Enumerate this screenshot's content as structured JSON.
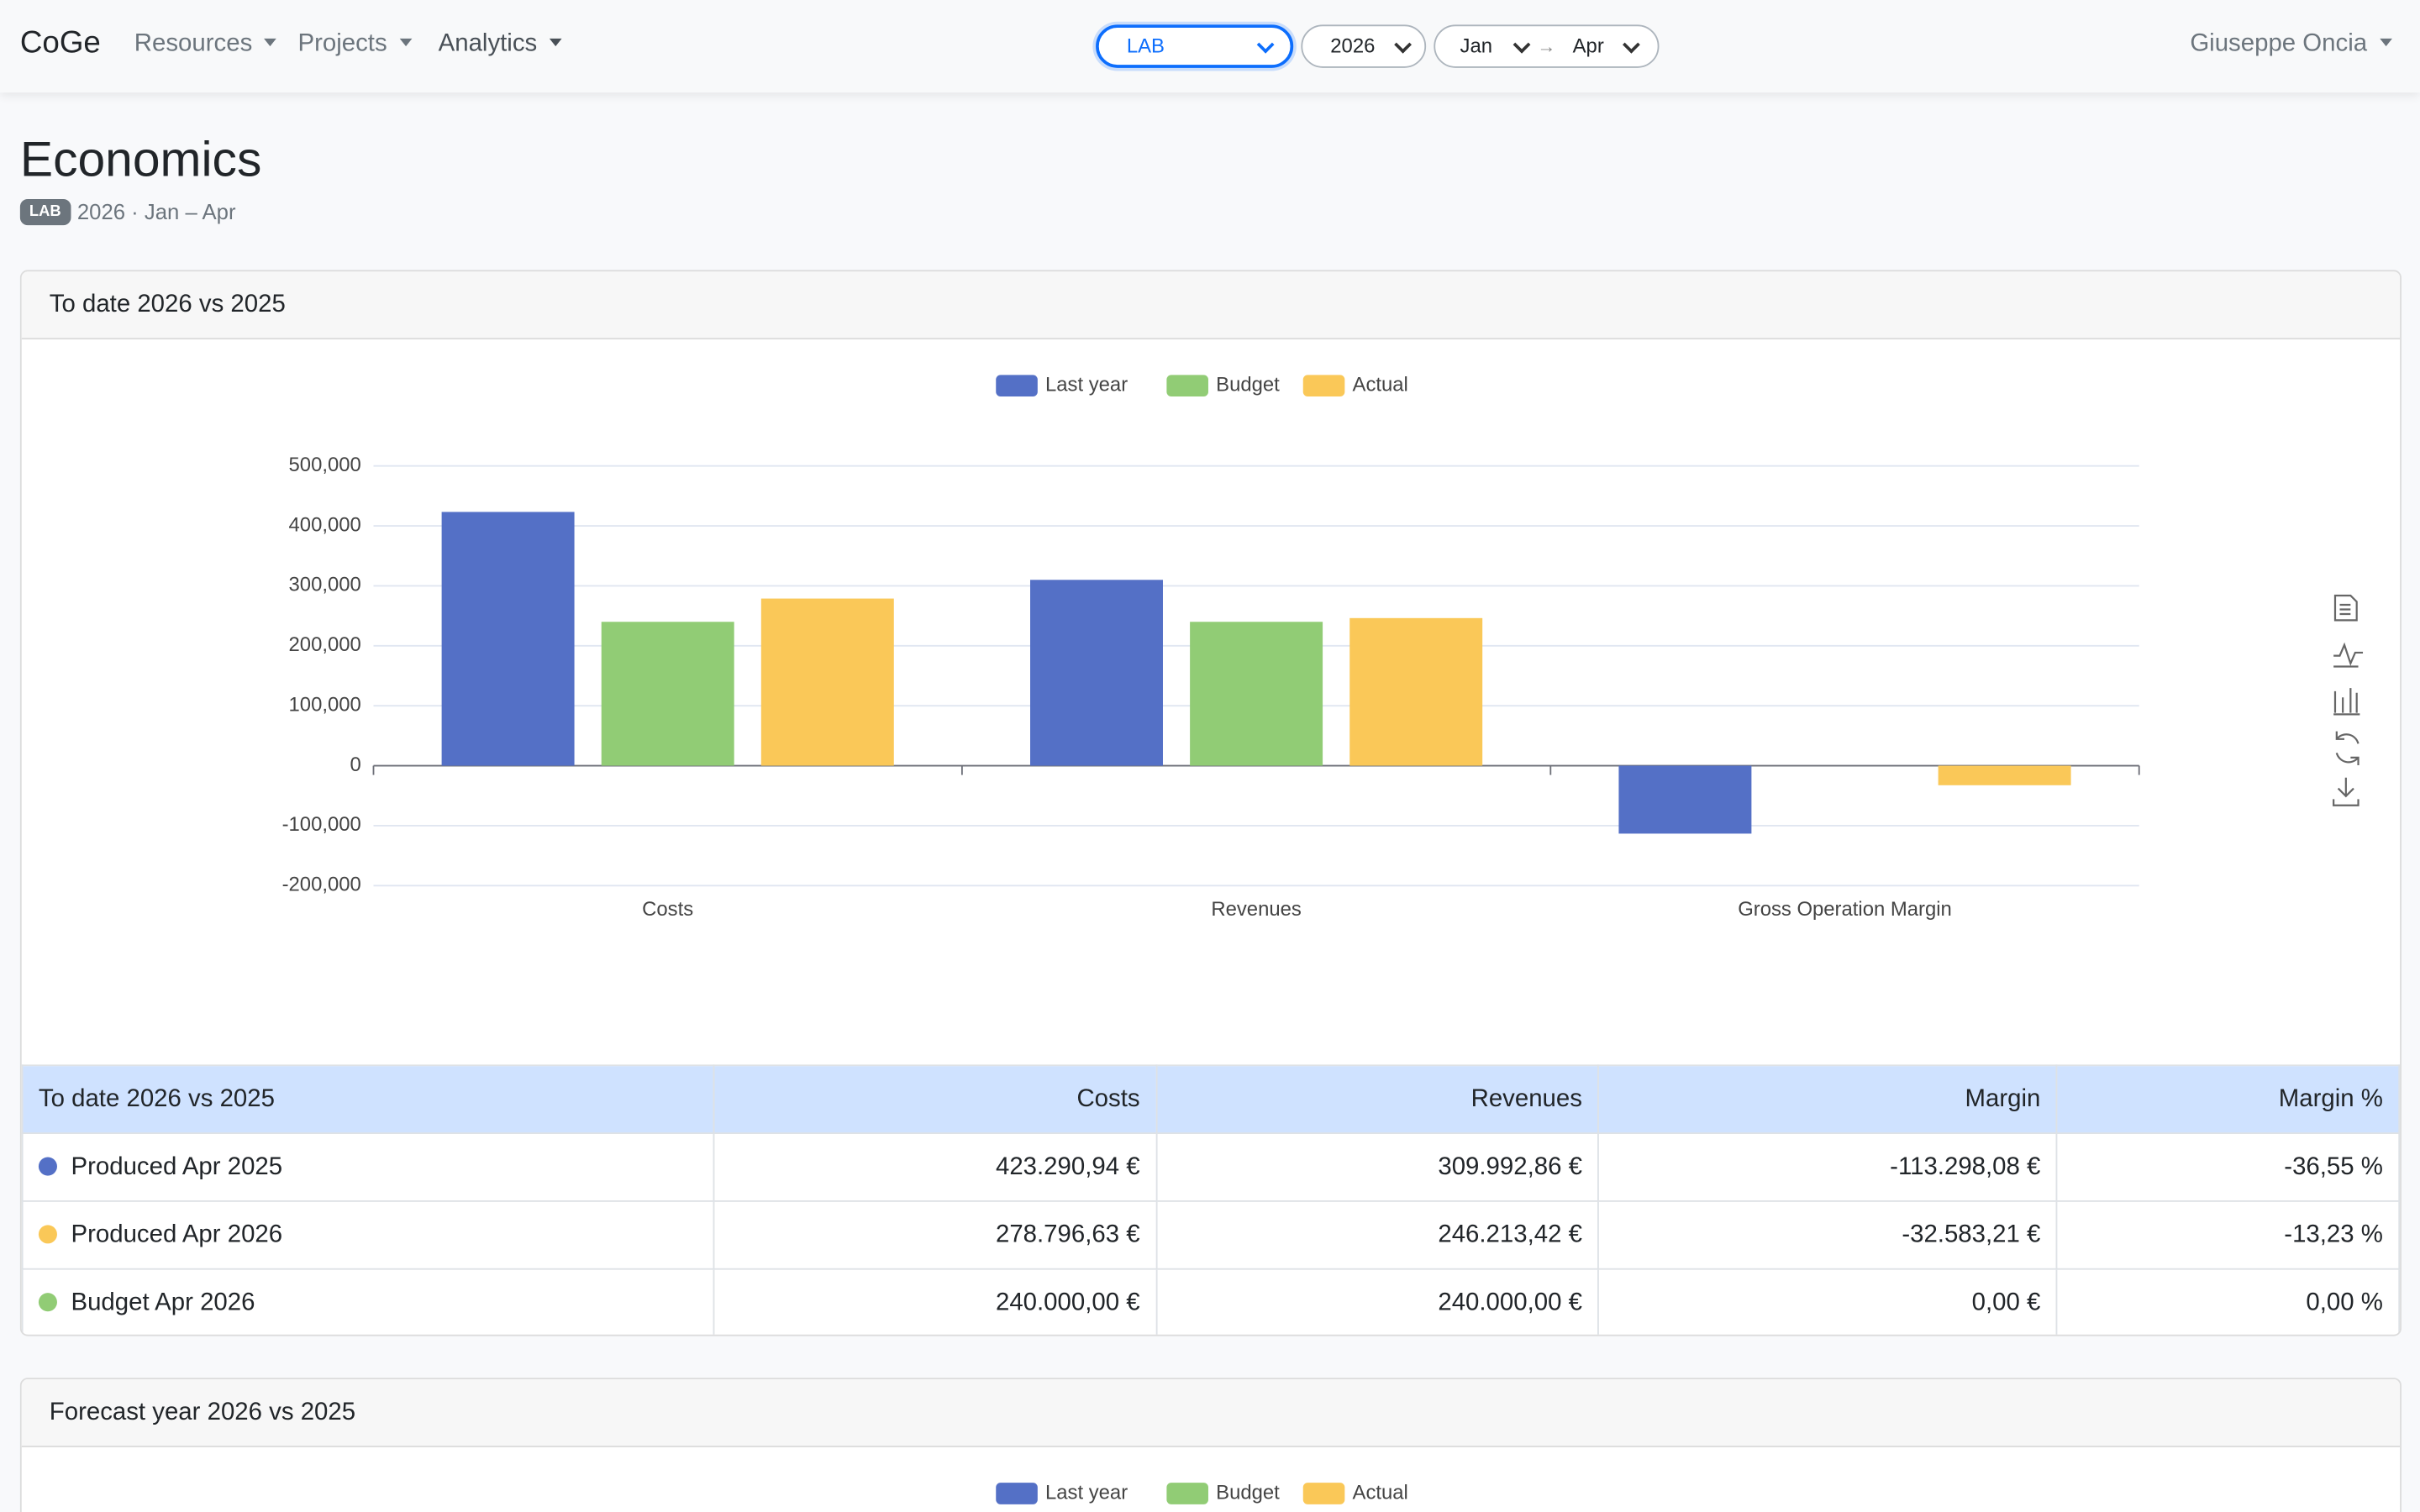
{
  "nav": {
    "brand": "CoGe",
    "menus": [
      "Resources",
      "Projects",
      "Analytics"
    ],
    "unit": "LAB",
    "year": "2026",
    "from": "Jan",
    "to": "Apr",
    "user": "Giuseppe Oncia"
  },
  "header": {
    "title": "Economics",
    "badge": "LAB",
    "subtitle": "2026 · Jan – Apr"
  },
  "chart_data": {
    "type": "bar",
    "title": "To date 2026 vs 2025",
    "categories": [
      "Costs",
      "Revenues",
      "Gross Operation Margin"
    ],
    "series": [
      {
        "name": "Last year",
        "color": "#5470c6",
        "values": [
          423290.94,
          309992.86,
          -113298.08
        ]
      },
      {
        "name": "Budget",
        "color": "#91cc75",
        "values": [
          240000,
          240000,
          0
        ]
      },
      {
        "name": "Actual",
        "color": "#fac858",
        "values": [
          278796.63,
          246213.42,
          -32583.21
        ]
      }
    ],
    "ylim": [
      -200000,
      500000
    ],
    "yticks": [
      {
        "value": -200000,
        "label": "-200,000"
      },
      {
        "value": -100000,
        "label": "-100,000"
      },
      0,
      {
        "value": 100000,
        "label": "100,000"
      },
      {
        "value": 200000,
        "label": "200,000"
      },
      {
        "value": 300000,
        "label": "300,000"
      },
      {
        "value": 400000,
        "label": "400,000"
      },
      {
        "value": 500000,
        "label": "500,000"
      }
    ],
    "grid": true,
    "legend": "top"
  },
  "table": {
    "header": [
      "To date 2026 vs 2025",
      "Costs",
      "Revenues",
      "Margin",
      "Margin %"
    ],
    "rows": [
      {
        "dot": "#5470c6",
        "cells": [
          "Produced Apr 2025",
          "423.290,94 €",
          "309.992,86 €",
          "-113.298,08 €",
          "-36,55 %"
        ]
      },
      {
        "dot": "#fac858",
        "cells": [
          "Produced Apr 2026",
          "278.796,63 €",
          "246.213,42 €",
          "-32.583,21 €",
          "-13,23 %"
        ]
      },
      {
        "dot": "#91cc75",
        "cells": [
          "Budget Apr 2026",
          "240.000,00 €",
          "240.000,00 €",
          "0,00 €",
          "0,00 %"
        ]
      }
    ]
  },
  "forecast": {
    "title": "Forecast year 2026 vs 2025",
    "legend": [
      "Last year",
      "Budget",
      "Actual"
    ]
  }
}
